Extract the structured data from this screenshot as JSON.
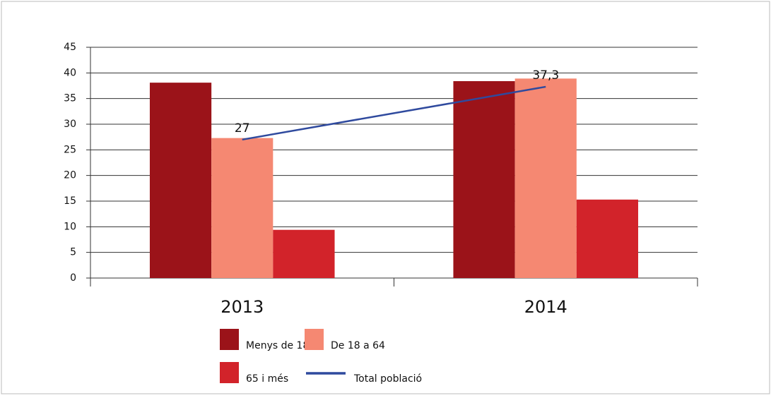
{
  "chart_data": {
    "type": "bar",
    "categories": [
      "2013",
      "2014"
    ],
    "series": [
      {
        "name": "Menys de 18",
        "color": "#9b1319",
        "values": [
          38.1,
          38.4
        ]
      },
      {
        "name": "De 18 a 64",
        "color": "#f58872",
        "values": [
          27.3,
          38.9
        ]
      },
      {
        "name": "65 i més",
        "color": "#d2232a",
        "values": [
          9.4,
          15.3
        ]
      },
      {
        "name": "Total població",
        "type": "line",
        "color": "#2f4a9e",
        "values": [
          27,
          37.3
        ],
        "value_labels": [
          "27",
          "37,3"
        ]
      }
    ],
    "ylim": [
      0,
      45
    ],
    "yticks": [
      0,
      5,
      10,
      15,
      20,
      25,
      30,
      35,
      40,
      45
    ],
    "grid": true
  }
}
